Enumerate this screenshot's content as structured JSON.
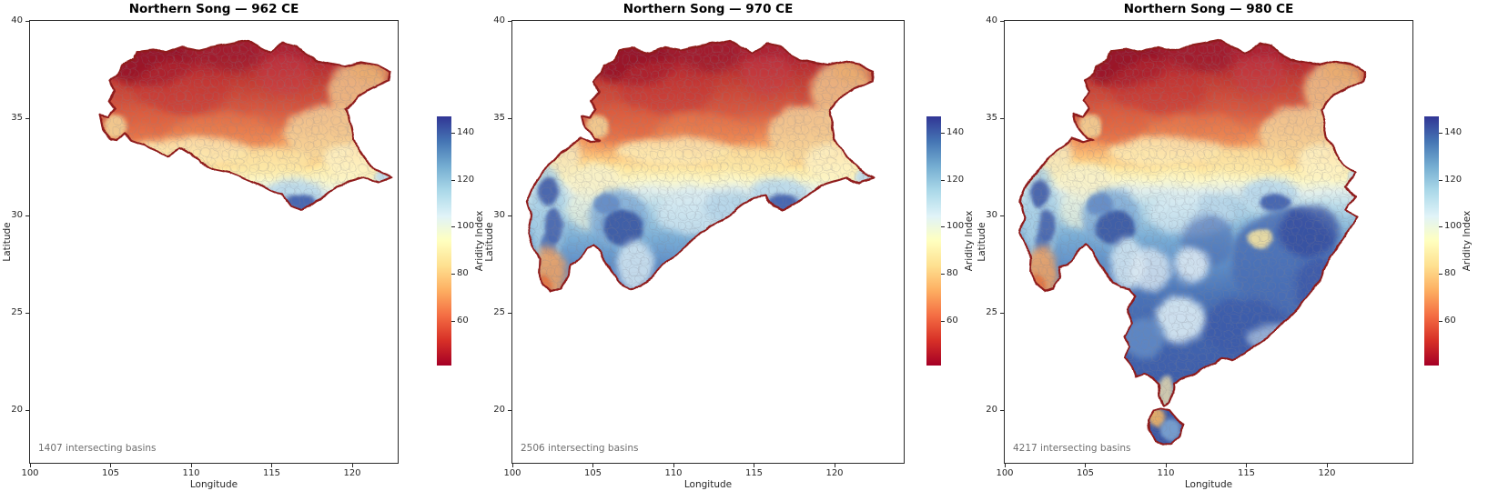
{
  "figure": {
    "background": "#ffffff"
  },
  "panels": [
    {
      "title": "Northern Song — 962 CE",
      "year": 962,
      "annotation": "1407 intersecting basins",
      "basin_count": 1407
    },
    {
      "title": "Northern Song — 970 CE",
      "year": 970,
      "annotation": "2506 intersecting basins",
      "basin_count": 2506
    },
    {
      "title": "Northern Song — 980 CE",
      "year": 980,
      "annotation": "4217 intersecting basins",
      "basin_count": 4217
    }
  ],
  "axes": {
    "xlabel": "Longitude",
    "ylabel": "Latitude",
    "x_ticks": [
      100,
      105,
      110,
      115,
      120
    ],
    "y_ticks": [
      20,
      25,
      30,
      35,
      40
    ],
    "x_range": [
      100,
      123
    ],
    "y_range": [
      17.3,
      40
    ]
  },
  "colorbar": {
    "label": "Aridity Index",
    "ticks": [
      60,
      80,
      100,
      120,
      140
    ],
    "vmin": 41,
    "vmax": 147,
    "colormap": "RdYlBu",
    "stops": [
      "#a50026",
      "#d73027",
      "#f46d43",
      "#fdae61",
      "#fee090",
      "#ffffbf",
      "#e0f3f8",
      "#abd9e9",
      "#74add1",
      "#4575b4",
      "#313695"
    ]
  },
  "colors": {
    "territory_boundary": "#8f1d1d",
    "basin_edges": "#80808c",
    "annotation_text": "#6e6e6e",
    "spine": "#2b2b2b"
  },
  "chart_data": {
    "type": "heatmap",
    "subtype": "choropleth-map-series",
    "title": "Northern Song aridity index by drainage basin, three snapshot years",
    "panels": [
      {
        "title": "Northern Song — 962 CE",
        "year": 962,
        "intersecting_basins": 1407,
        "extent": "northern China only: lon ~103.6–122.5, lat ~30.3–39.0",
        "pattern": "dark red (arid, AI~45-60) northwest and north; orange center; pale yellow along the southern border and Shandong coast; small light/dark blue (AI~120-145) lobe in the far south around lon 115-118"
      },
      {
        "title": "Northern Song — 970 CE",
        "year": 970,
        "intersecting_basins": 2506,
        "extent": "north plus southwest (Sichuan) extension: lon ~100.9–122.5, lat ~26.1–39.0",
        "pattern": "same arid north; humid blue basin clusters (AI~120-145) in western and southeastern Sichuan; orange southwest lobe; diagonal southeastern boundary from lon 108 lat 26.5 up to lon 115 lat 31"
      },
      {
        "title": "Northern Song — 980 CE",
        "year": 980,
        "intersecting_basins": 4217,
        "extent": "full territory including all of south China and Hainan: lon ~100.9–122.5, lat ~18.2–39.0",
        "pattern": "arid red north, yellow transition band near lat 32-33, broadly humid blue south with large dark-blue masses (AI~130-147) in the southeast, pale patches around lon 110-112, orange northwest Hainan"
      }
    ],
    "x": {
      "label": "Longitude",
      "ticks": [
        100,
        105,
        110,
        115,
        120
      ],
      "range": [
        100,
        123
      ]
    },
    "y": {
      "label": "Latitude",
      "ticks": [
        20,
        25,
        30,
        35,
        40
      ],
      "range": [
        17.3,
        40
      ]
    },
    "colorbar": {
      "label": "Aridity Index",
      "ticks": [
        60,
        80,
        100,
        120,
        140
      ],
      "range": [
        41,
        147
      ],
      "colormap": "RdYlBu",
      "orientation": "vertical"
    },
    "grid": false,
    "legend": false
  }
}
